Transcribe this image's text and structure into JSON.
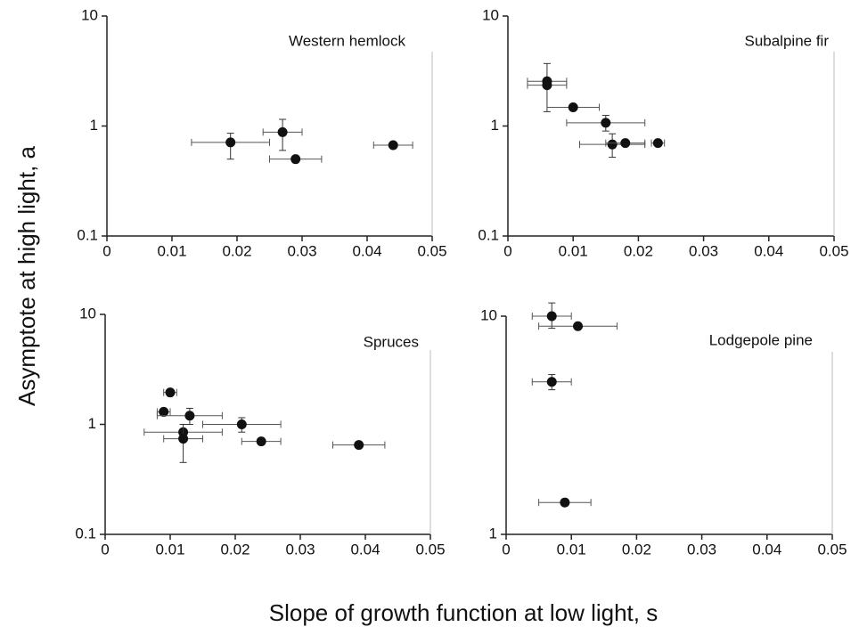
{
  "y_label": "Asymptote at high light, a",
  "x_label": "Slope of growth function at low light, s",
  "chart_data": [
    {
      "type": "scatter",
      "title": "Western hemlock",
      "log_y": true,
      "x": [
        0.019,
        0.027,
        0.029,
        0.044
      ],
      "values": [
        0.71,
        0.88,
        0.5,
        0.67
      ],
      "x_err": [
        0.006,
        0.003,
        0.004,
        0.003
      ],
      "y_lower": [
        0.5,
        0.6,
        null,
        null
      ],
      "y_upper": [
        0.86,
        1.15,
        null,
        null
      ],
      "xlim": [
        0,
        0.05
      ],
      "ylim": [
        0.1,
        10
      ],
      "xticks": [
        0,
        0.01,
        0.02,
        0.03,
        0.04,
        0.05
      ],
      "yticks": [
        0.1,
        1,
        10
      ]
    },
    {
      "type": "scatter",
      "title": "Subalpine fir",
      "log_y": true,
      "x": [
        0.006,
        0.006,
        0.01,
        0.015,
        0.016,
        0.018,
        0.023
      ],
      "values": [
        2.55,
        2.35,
        1.48,
        1.07,
        0.68,
        0.7,
        0.7
      ],
      "x_err": [
        0.003,
        0.003,
        0.004,
        0.006,
        0.005,
        0.003,
        0.001
      ],
      "y_lower": [
        1.35,
        null,
        null,
        0.9,
        0.52,
        null,
        null
      ],
      "y_upper": [
        3.7,
        null,
        null,
        1.25,
        0.85,
        null,
        null
      ],
      "xlim": [
        0,
        0.05
      ],
      "ylim": [
        0.1,
        10
      ],
      "xticks": [
        0,
        0.01,
        0.02,
        0.03,
        0.04,
        0.05
      ],
      "yticks": [
        0.1,
        1,
        10
      ]
    },
    {
      "type": "scatter",
      "title": "Spruces",
      "log_y": true,
      "x": [
        0.01,
        0.009,
        0.013,
        0.021,
        0.012,
        0.012,
        0.024,
        0.039
      ],
      "values": [
        1.95,
        1.3,
        1.2,
        1.0,
        0.85,
        0.74,
        0.7,
        0.65
      ],
      "x_err": [
        0.001,
        0.001,
        0.005,
        0.006,
        0.006,
        0.003,
        0.003,
        0.004
      ],
      "y_lower": [
        null,
        null,
        1.0,
        0.85,
        null,
        0.45,
        null,
        null
      ],
      "y_upper": [
        null,
        null,
        1.4,
        1.15,
        null,
        1.0,
        null,
        null
      ],
      "xlim": [
        0,
        0.05
      ],
      "ylim": [
        0.1,
        10
      ],
      "xticks": [
        0,
        0.01,
        0.02,
        0.03,
        0.04,
        0.05
      ],
      "yticks": [
        0.1,
        1,
        10
      ]
    },
    {
      "type": "scatter",
      "title": "Lodgepole pine",
      "log_y": true,
      "x": [
        0.007,
        0.011,
        0.007,
        0.009
      ],
      "values": [
        10,
        9.0,
        5.0,
        1.4
      ],
      "x_err": [
        0.003,
        0.006,
        0.003,
        0.004
      ],
      "y_lower": [
        8.8,
        null,
        4.6,
        null
      ],
      "y_upper": [
        11.5,
        null,
        5.4,
        null
      ],
      "xlim": [
        0,
        0.05
      ],
      "ylim": [
        1,
        10
      ],
      "xticks": [
        0,
        0.01,
        0.02,
        0.03,
        0.04,
        0.05
      ],
      "yticks": [
        1,
        10
      ]
    }
  ]
}
